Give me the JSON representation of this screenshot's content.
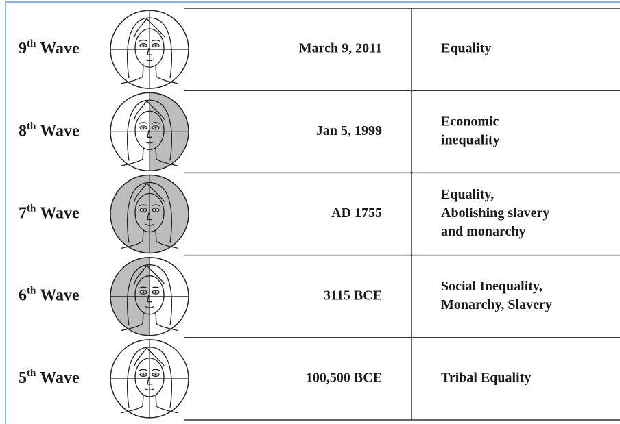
{
  "rows": [
    {
      "number": "9",
      "suffix": "th",
      "word": "Wave",
      "date": "March 9, 2011",
      "description": [
        "Equality"
      ]
    },
    {
      "number": "8",
      "suffix": "th",
      "word": "Wave",
      "date": "Jan 5, 1999",
      "description": [
        "Economic",
        "inequality"
      ]
    },
    {
      "number": "7",
      "suffix": "th",
      "word": "Wave",
      "date": "AD 1755",
      "description": [
        "Equality,",
        "Abolishing slavery",
        "and monarchy"
      ]
    },
    {
      "number": "6",
      "suffix": "th",
      "word": "Wave",
      "date": "3115 BCE",
      "description": [
        "Social Inequality,",
        "Monarchy, Slavery"
      ]
    },
    {
      "number": "5",
      "suffix": "th",
      "word": "Wave",
      "date": "100,500 BCE",
      "description": [
        "Tribal Equality"
      ]
    }
  ]
}
